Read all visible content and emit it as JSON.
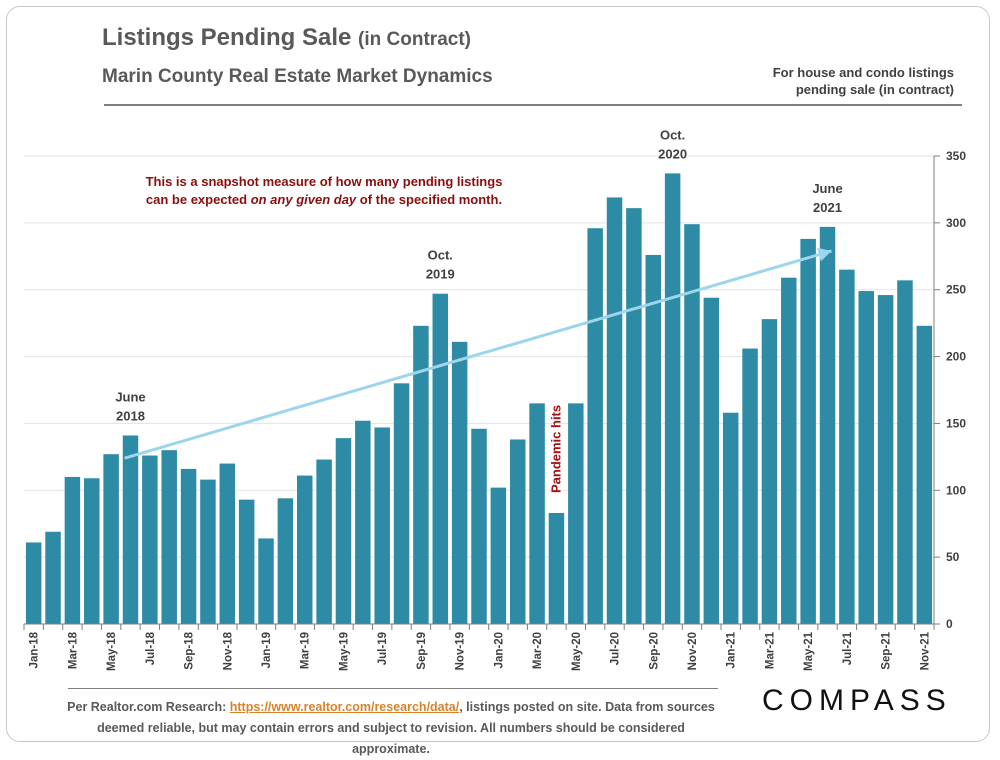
{
  "header": {
    "title": "Listings Pending Sale",
    "title_suffix": "(in Contract)",
    "subtitle": "Marin County Real Estate Market Dynamics",
    "note_line1": "For house and condo listings",
    "note_line2": "pending sale (in contract)"
  },
  "footer": {
    "source_prefix": "Per Realtor.com Research:",
    "source_link": "https://www.realtor.com/research/data/",
    "source_rest": ", listings posted on site. Data from sources",
    "source_line2": "deemed reliable, but may contain errors and subject to revision. All numbers should be considered approximate.",
    "logo": "COMPASS"
  },
  "chart_data": {
    "type": "bar",
    "title": "Listings Pending Sale (in Contract)",
    "xlabel": "",
    "ylabel": "",
    "ylim": [
      0,
      350
    ],
    "yticks": [
      0,
      50,
      100,
      150,
      200,
      250,
      300,
      350
    ],
    "y_axis_side": "right",
    "bar_color": "#2e8ba5",
    "categories": [
      "Jan-18",
      "Feb-18",
      "Mar-18",
      "Apr-18",
      "May-18",
      "Jun-18",
      "Jul-18",
      "Aug-18",
      "Sep-18",
      "Oct-18",
      "Nov-18",
      "Dec-18",
      "Jan-19",
      "Feb-19",
      "Mar-19",
      "Apr-19",
      "May-19",
      "Jun-19",
      "Jul-19",
      "Aug-19",
      "Sep-19",
      "Oct-19",
      "Nov-19",
      "Dec-19",
      "Jan-20",
      "Feb-20",
      "Mar-20",
      "Apr-20",
      "May-20",
      "Jun-20",
      "Jul-20",
      "Aug-20",
      "Sep-20",
      "Oct-20",
      "Nov-20",
      "Dec-20",
      "Jan-21",
      "Feb-21",
      "Mar-21",
      "Apr-21",
      "May-21",
      "Jun-21",
      "Jul-21",
      "Aug-21",
      "Sep-21",
      "Oct-21",
      "Nov-21"
    ],
    "values": [
      61,
      69,
      110,
      109,
      127,
      141,
      126,
      130,
      116,
      108,
      120,
      93,
      64,
      94,
      111,
      123,
      139,
      152,
      147,
      180,
      223,
      247,
      211,
      146,
      102,
      138,
      165,
      83,
      165,
      296,
      319,
      311,
      276,
      337,
      299,
      244,
      158,
      206,
      228,
      259,
      288,
      297,
      265,
      249,
      246,
      257,
      223
    ],
    "tick_labels": [
      "Jan-18",
      "Mar-18",
      "May-18",
      "Jul-18",
      "Sep-18",
      "Nov-18",
      "Jan-19",
      "Mar-19",
      "May-19",
      "Jul-19",
      "Sep-19",
      "Nov-19",
      "Jan-20",
      "Mar-20",
      "May-20",
      "Jul-20",
      "Sep-20",
      "Nov-20",
      "Jan-21",
      "Mar-21",
      "May-21",
      "Jul-21",
      "Sep-21",
      "Nov-21"
    ],
    "annotations": [
      {
        "line1": "June",
        "line2": "2018",
        "category": "Jun-18"
      },
      {
        "line1": "Oct.",
        "line2": "2019",
        "category": "Oct-19"
      },
      {
        "line1": "Oct.",
        "line2": "2020",
        "category": "Oct-20"
      },
      {
        "line1": "June",
        "line2": "2021",
        "category": "Jun-21"
      }
    ],
    "pandemic_label": "Pandemic hits",
    "pandemic_category": "Apr-20",
    "callout_line1": "This is a snapshot measure of how many pending listings",
    "callout_line2_before": "can be expected ",
    "callout_line2_em": "on any given day",
    "callout_line2_after": " of the specified month.",
    "trend_arrow": {
      "from_category": "Jun-18",
      "from_value": 124,
      "to_category": "Jun-21",
      "to_value": 279,
      "color": "#9dd5ec"
    }
  }
}
